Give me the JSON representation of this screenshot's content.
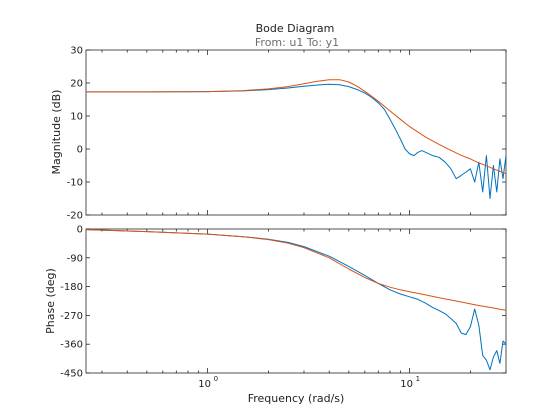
{
  "chart_data": {
    "type": "line",
    "title": "Bode Diagram",
    "subtitle": "From: u1  To: y1",
    "xlabel": "Frequency  (rad/s)",
    "xscale": "log",
    "xlim": [
      0.25,
      30
    ],
    "x_major_ticks": [
      1,
      10
    ],
    "x_tick_labels": [
      "10",
      "10"
    ],
    "x_tick_exponents": [
      "0",
      "1"
    ],
    "grid": false,
    "panels": [
      {
        "name": "magnitude",
        "ylabel": "Magnitude (dB)",
        "ylim": [
          -20,
          30
        ],
        "yticks": [
          -20,
          -10,
          0,
          10,
          20,
          30
        ],
        "ytick_labels": [
          "-20",
          "-10",
          "0",
          "10",
          "20",
          "30"
        ],
        "series": [
          {
            "color": "#0072BD",
            "x": [
              0.25,
              0.5,
              1,
              1.5,
              2,
              2.5,
              3,
              3.5,
              4,
              4.5,
              5,
              5.5,
              6,
              6.5,
              7,
              7.5,
              8,
              8.5,
              9,
              9.5,
              10,
              10.5,
              11,
              11.5,
              12,
              13,
              14,
              15,
              16,
              17,
              18,
              19,
              20,
              21,
              22,
              23,
              24,
              25,
              26,
              27,
              28,
              29,
              30
            ],
            "y": [
              17.3,
              17.3,
              17.4,
              17.6,
              18.0,
              18.5,
              19.0,
              19.4,
              19.6,
              19.5,
              18.9,
              18.0,
              17.0,
              15.6,
              14.0,
              12.0,
              9.0,
              6.0,
              3.0,
              0.0,
              -1.5,
              -2.0,
              -1.0,
              -0.5,
              -1.0,
              -2.0,
              -2.5,
              -4.0,
              -6.0,
              -9.0,
              -8.0,
              -7.0,
              -6.0,
              -10.0,
              -4.0,
              -13.0,
              -2.0,
              -15.0,
              -5.0,
              -13.0,
              -3.0,
              -9.0,
              -2.0
            ]
          },
          {
            "color": "#D95319",
            "x": [
              0.25,
              0.5,
              1,
              1.5,
              2,
              2.5,
              3,
              3.5,
              4,
              4.5,
              5,
              5.5,
              6,
              7,
              8,
              9,
              10,
              12,
              14,
              16,
              18,
              20,
              22,
              24,
              26,
              28,
              30
            ],
            "y": [
              17.3,
              17.3,
              17.4,
              17.7,
              18.2,
              18.9,
              19.8,
              20.5,
              21.0,
              21.0,
              20.3,
              19.0,
              17.5,
              14.5,
              11.5,
              9.0,
              6.8,
              3.6,
              1.4,
              -0.4,
              -1.9,
              -3.0,
              -4.2,
              -5.1,
              -6.0,
              -6.8,
              -7.5
            ]
          }
        ]
      },
      {
        "name": "phase",
        "ylabel": "Phase (deg)",
        "ylim": [
          -450,
          0
        ],
        "yticks": [
          -450,
          -360,
          -270,
          -180,
          -90,
          0
        ],
        "ytick_labels": [
          "-450",
          "-360",
          "-270",
          "-180",
          "-90",
          "0"
        ],
        "series": [
          {
            "color": "#0072BD",
            "x": [
              0.25,
              0.5,
              1,
              1.5,
              2,
              2.5,
              3,
              4,
              5,
              6,
              7,
              8,
              9,
              10,
              11,
              12,
              13,
              14,
              15,
              16,
              17,
              18,
              19,
              20,
              21,
              22,
              23,
              24,
              25,
              26,
              27,
              28,
              29,
              30
            ],
            "y": [
              -2,
              -8,
              -16,
              -24,
              -32,
              -42,
              -55,
              -85,
              -117,
              -145,
              -170,
              -190,
              -203,
              -212,
              -220,
              -232,
              -245,
              -255,
              -265,
              -280,
              -295,
              -325,
              -330,
              -305,
              -250,
              -300,
              -395,
              -410,
              -440,
              -400,
              -380,
              -420,
              -350,
              -360
            ]
          },
          {
            "color": "#D95319",
            "x": [
              0.25,
              0.5,
              1,
              1.5,
              2,
              2.5,
              3,
              4,
              5,
              6,
              7,
              8,
              9,
              10,
              12,
              14,
              16,
              18,
              20,
              22,
              24,
              26,
              28,
              30
            ],
            "y": [
              -2,
              -8,
              -16,
              -24,
              -33,
              -44,
              -58,
              -90,
              -125,
              -152,
              -170,
              -182,
              -190,
              -196,
              -206,
              -215,
              -222,
              -228,
              -234,
              -239,
              -243,
              -247,
              -251,
              -254
            ]
          }
        ]
      }
    ]
  }
}
